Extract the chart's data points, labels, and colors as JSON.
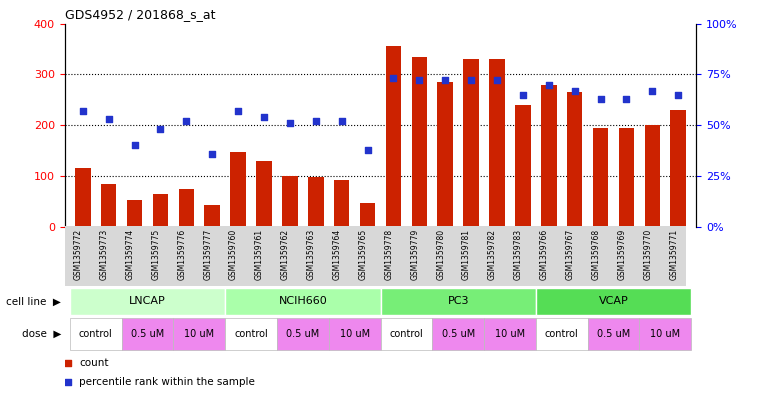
{
  "title": "GDS4952 / 201868_s_at",
  "samples": [
    "GSM1359772",
    "GSM1359773",
    "GSM1359774",
    "GSM1359775",
    "GSM1359776",
    "GSM1359777",
    "GSM1359760",
    "GSM1359761",
    "GSM1359762",
    "GSM1359763",
    "GSM1359764",
    "GSM1359765",
    "GSM1359778",
    "GSM1359779",
    "GSM1359780",
    "GSM1359781",
    "GSM1359782",
    "GSM1359783",
    "GSM1359766",
    "GSM1359767",
    "GSM1359768",
    "GSM1359769",
    "GSM1359770",
    "GSM1359771"
  ],
  "counts": [
    115,
    85,
    52,
    65,
    75,
    42,
    148,
    130,
    100,
    97,
    92,
    47,
    355,
    335,
    285,
    330,
    330,
    240,
    280,
    265,
    195,
    195,
    200,
    230
  ],
  "percentiles": [
    57,
    53,
    40,
    48,
    52,
    36,
    57,
    54,
    51,
    52,
    52,
    38,
    73,
    72,
    72,
    72,
    72,
    65,
    70,
    67,
    63,
    63,
    67,
    65
  ],
  "bar_color": "#CC2200",
  "dot_color": "#2233CC",
  "ylim_left": [
    0,
    400
  ],
  "ylim_right": [
    0,
    100
  ],
  "yticks_left": [
    0,
    100,
    200,
    300,
    400
  ],
  "yticks_right": [
    0,
    25,
    50,
    75,
    100
  ],
  "ytick_labels_right": [
    "0%",
    "25%",
    "50%",
    "75%",
    "100%"
  ],
  "cell_line_groups": [
    {
      "name": "LNCAP",
      "start": 0,
      "end": 5,
      "color": "#ccffcc"
    },
    {
      "name": "NCIH660",
      "start": 6,
      "end": 11,
      "color": "#aaffaa"
    },
    {
      "name": "PC3",
      "start": 12,
      "end": 17,
      "color": "#77ee77"
    },
    {
      "name": "VCAP",
      "start": 18,
      "end": 23,
      "color": "#55dd55"
    }
  ],
  "dose_groups": [
    {
      "label": "control",
      "start": 0,
      "end": 1,
      "color": "#ffffff"
    },
    {
      "label": "0.5 uM",
      "start": 2,
      "end": 3,
      "color": "#ee88ee"
    },
    {
      "label": "10 uM",
      "start": 4,
      "end": 5,
      "color": "#ee88ee"
    },
    {
      "label": "control",
      "start": 6,
      "end": 7,
      "color": "#ffffff"
    },
    {
      "label": "0.5 uM",
      "start": 8,
      "end": 9,
      "color": "#ee88ee"
    },
    {
      "label": "10 uM",
      "start": 10,
      "end": 11,
      "color": "#ee88ee"
    },
    {
      "label": "control",
      "start": 12,
      "end": 13,
      "color": "#ffffff"
    },
    {
      "label": "0.5 uM",
      "start": 14,
      "end": 15,
      "color": "#ee88ee"
    },
    {
      "label": "10 uM",
      "start": 16,
      "end": 17,
      "color": "#ee88ee"
    },
    {
      "label": "control",
      "start": 18,
      "end": 19,
      "color": "#ffffff"
    },
    {
      "label": "0.5 uM",
      "start": 20,
      "end": 21,
      "color": "#ee88ee"
    },
    {
      "label": "10 uM",
      "start": 22,
      "end": 23,
      "color": "#ee88ee"
    }
  ]
}
